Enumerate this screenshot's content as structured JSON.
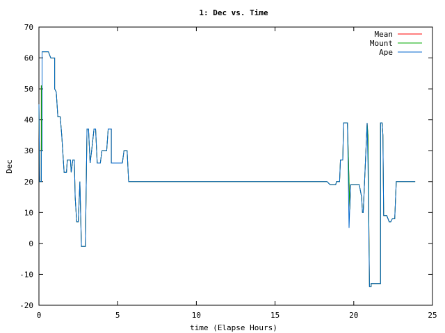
{
  "chart_data": {
    "type": "line",
    "title": "1: Dec vs. Time",
    "xlabel": "time (Elapse Hours)",
    "ylabel": "Dec",
    "xlim": [
      0,
      25
    ],
    "ylim": [
      -20,
      70
    ],
    "x_ticks": [
      0,
      5,
      10,
      15,
      20,
      25
    ],
    "y_ticks": [
      -20,
      -10,
      0,
      10,
      20,
      30,
      40,
      50,
      60,
      70
    ],
    "grid": false,
    "legend_position": "top-right",
    "series": [
      {
        "name": "Mean",
        "color": "#ff0000",
        "points": [
          [
            0,
            45
          ],
          [
            0.05,
            20
          ],
          [
            0.15,
            20
          ],
          [
            0.15,
            51
          ],
          [
            0.2,
            51
          ],
          [
            0.2,
            62
          ],
          [
            0.6,
            62
          ],
          [
            0.75,
            60
          ],
          [
            1.0,
            60
          ],
          [
            1.0,
            50
          ],
          [
            1.1,
            49
          ],
          [
            1.2,
            41
          ],
          [
            1.35,
            41
          ],
          [
            1.45,
            35
          ],
          [
            1.6,
            23
          ],
          [
            1.75,
            23
          ],
          [
            1.8,
            27
          ],
          [
            2.0,
            27
          ],
          [
            2.05,
            23
          ],
          [
            2.15,
            27
          ],
          [
            2.25,
            27
          ],
          [
            2.3,
            15
          ],
          [
            2.4,
            7
          ],
          [
            2.5,
            7
          ],
          [
            2.6,
            20
          ],
          [
            2.7,
            -1
          ],
          [
            2.95,
            -1
          ],
          [
            3.05,
            37
          ],
          [
            3.15,
            37
          ],
          [
            3.25,
            26
          ],
          [
            3.35,
            30
          ],
          [
            3.5,
            37
          ],
          [
            3.6,
            37
          ],
          [
            3.7,
            26
          ],
          [
            3.9,
            26
          ],
          [
            4.0,
            30
          ],
          [
            4.3,
            30
          ],
          [
            4.4,
            37
          ],
          [
            4.6,
            37
          ],
          [
            4.6,
            26
          ],
          [
            5.3,
            26
          ],
          [
            5.4,
            30
          ],
          [
            5.6,
            30
          ],
          [
            5.7,
            20
          ],
          [
            18.3,
            20
          ],
          [
            18.5,
            19
          ],
          [
            18.85,
            19
          ],
          [
            18.9,
            20
          ],
          [
            19.1,
            20
          ],
          [
            19.15,
            27
          ],
          [
            19.3,
            27
          ],
          [
            19.35,
            39
          ],
          [
            19.6,
            39
          ],
          [
            19.7,
            20
          ],
          [
            19.75,
            11
          ],
          [
            19.8,
            19
          ],
          [
            20.35,
            19
          ],
          [
            20.5,
            15
          ],
          [
            20.55,
            10
          ],
          [
            20.6,
            10
          ],
          [
            20.85,
            39
          ],
          [
            20.9,
            35
          ],
          [
            21.0,
            -14
          ],
          [
            21.1,
            -14
          ],
          [
            21.1,
            -13
          ],
          [
            21.7,
            -13
          ],
          [
            21.7,
            39
          ],
          [
            21.8,
            39
          ],
          [
            21.85,
            35
          ],
          [
            21.9,
            9
          ],
          [
            22.1,
            9
          ],
          [
            22.25,
            7
          ],
          [
            22.35,
            7
          ],
          [
            22.45,
            8
          ],
          [
            22.6,
            8
          ],
          [
            22.7,
            20
          ],
          [
            23.9,
            20
          ]
        ]
      },
      {
        "name": "Mount",
        "color": "#00aa00",
        "points": [
          [
            0,
            45
          ],
          [
            0.05,
            20
          ],
          [
            0.15,
            20
          ],
          [
            0.15,
            51
          ],
          [
            0.2,
            51
          ],
          [
            0.2,
            62
          ],
          [
            0.6,
            62
          ],
          [
            0.75,
            60
          ],
          [
            1.0,
            60
          ],
          [
            1.0,
            50
          ],
          [
            1.1,
            49
          ],
          [
            1.2,
            41
          ],
          [
            1.35,
            41
          ],
          [
            1.45,
            35
          ],
          [
            1.6,
            23
          ],
          [
            1.75,
            23
          ],
          [
            1.8,
            27
          ],
          [
            2.0,
            27
          ],
          [
            2.05,
            23
          ],
          [
            2.15,
            27
          ],
          [
            2.25,
            27
          ],
          [
            2.3,
            15
          ],
          [
            2.4,
            7
          ],
          [
            2.5,
            7
          ],
          [
            2.6,
            20
          ],
          [
            2.7,
            -1
          ],
          [
            2.95,
            -1
          ],
          [
            3.05,
            37
          ],
          [
            3.15,
            37
          ],
          [
            3.25,
            26
          ],
          [
            3.35,
            30
          ],
          [
            3.5,
            37
          ],
          [
            3.6,
            37
          ],
          [
            3.7,
            26
          ],
          [
            3.9,
            26
          ],
          [
            4.0,
            30
          ],
          [
            4.3,
            30
          ],
          [
            4.4,
            37
          ],
          [
            4.6,
            37
          ],
          [
            4.6,
            26
          ],
          [
            5.3,
            26
          ],
          [
            5.4,
            30
          ],
          [
            5.6,
            30
          ],
          [
            5.7,
            20
          ],
          [
            18.3,
            20
          ],
          [
            18.5,
            19
          ],
          [
            18.85,
            19
          ],
          [
            18.9,
            20
          ],
          [
            19.1,
            20
          ],
          [
            19.15,
            27
          ],
          [
            19.3,
            27
          ],
          [
            19.35,
            39
          ],
          [
            19.6,
            39
          ],
          [
            19.7,
            20
          ],
          [
            19.75,
            11
          ],
          [
            19.8,
            19
          ],
          [
            20.35,
            19
          ],
          [
            20.5,
            15
          ],
          [
            20.55,
            10
          ],
          [
            20.6,
            10
          ],
          [
            20.85,
            39
          ],
          [
            20.9,
            35
          ],
          [
            21.0,
            -14
          ],
          [
            21.1,
            -14
          ],
          [
            21.1,
            -13
          ],
          [
            21.7,
            -13
          ],
          [
            21.7,
            39
          ],
          [
            21.8,
            39
          ],
          [
            21.85,
            35
          ],
          [
            21.9,
            9
          ],
          [
            22.1,
            9
          ],
          [
            22.25,
            7
          ],
          [
            22.35,
            7
          ],
          [
            22.45,
            8
          ],
          [
            22.6,
            8
          ],
          [
            22.7,
            20
          ],
          [
            23.9,
            20
          ]
        ]
      },
      {
        "name": "Ape",
        "color": "#0066cc",
        "points": [
          [
            0,
            45
          ],
          [
            0.05,
            20
          ],
          [
            0.15,
            20
          ],
          [
            0.15,
            30
          ],
          [
            0.2,
            30
          ],
          [
            0.2,
            62
          ],
          [
            0.6,
            62
          ],
          [
            0.75,
            60
          ],
          [
            1.0,
            60
          ],
          [
            1.0,
            50
          ],
          [
            1.1,
            49
          ],
          [
            1.2,
            41
          ],
          [
            1.35,
            41
          ],
          [
            1.45,
            35
          ],
          [
            1.6,
            23
          ],
          [
            1.75,
            23
          ],
          [
            1.8,
            27
          ],
          [
            2.0,
            27
          ],
          [
            2.05,
            23
          ],
          [
            2.15,
            27
          ],
          [
            2.25,
            27
          ],
          [
            2.3,
            15
          ],
          [
            2.4,
            7
          ],
          [
            2.5,
            7
          ],
          [
            2.6,
            20
          ],
          [
            2.7,
            -1
          ],
          [
            2.95,
            -1
          ],
          [
            3.05,
            37
          ],
          [
            3.15,
            37
          ],
          [
            3.25,
            26
          ],
          [
            3.35,
            30
          ],
          [
            3.5,
            37
          ],
          [
            3.6,
            37
          ],
          [
            3.7,
            26
          ],
          [
            3.9,
            26
          ],
          [
            4.0,
            30
          ],
          [
            4.3,
            30
          ],
          [
            4.4,
            37
          ],
          [
            4.6,
            37
          ],
          [
            4.6,
            26
          ],
          [
            5.3,
            26
          ],
          [
            5.4,
            30
          ],
          [
            5.6,
            30
          ],
          [
            5.7,
            20
          ],
          [
            18.3,
            20
          ],
          [
            18.5,
            19
          ],
          [
            18.85,
            19
          ],
          [
            18.9,
            20
          ],
          [
            19.1,
            20
          ],
          [
            19.15,
            27
          ],
          [
            19.3,
            27
          ],
          [
            19.35,
            39
          ],
          [
            19.6,
            39
          ],
          [
            19.65,
            22
          ],
          [
            19.7,
            5
          ],
          [
            19.75,
            12
          ],
          [
            19.8,
            19
          ],
          [
            20.35,
            19
          ],
          [
            20.5,
            15
          ],
          [
            20.55,
            10
          ],
          [
            20.6,
            10
          ],
          [
            20.85,
            39
          ],
          [
            20.9,
            26
          ],
          [
            21.0,
            -14
          ],
          [
            21.1,
            -14
          ],
          [
            21.1,
            -13
          ],
          [
            21.7,
            -13
          ],
          [
            21.7,
            39
          ],
          [
            21.8,
            39
          ],
          [
            21.85,
            35
          ],
          [
            21.9,
            9
          ],
          [
            22.1,
            9
          ],
          [
            22.25,
            7
          ],
          [
            22.35,
            7
          ],
          [
            22.45,
            8
          ],
          [
            22.6,
            8
          ],
          [
            22.7,
            20
          ],
          [
            23.9,
            20
          ]
        ]
      }
    ]
  }
}
